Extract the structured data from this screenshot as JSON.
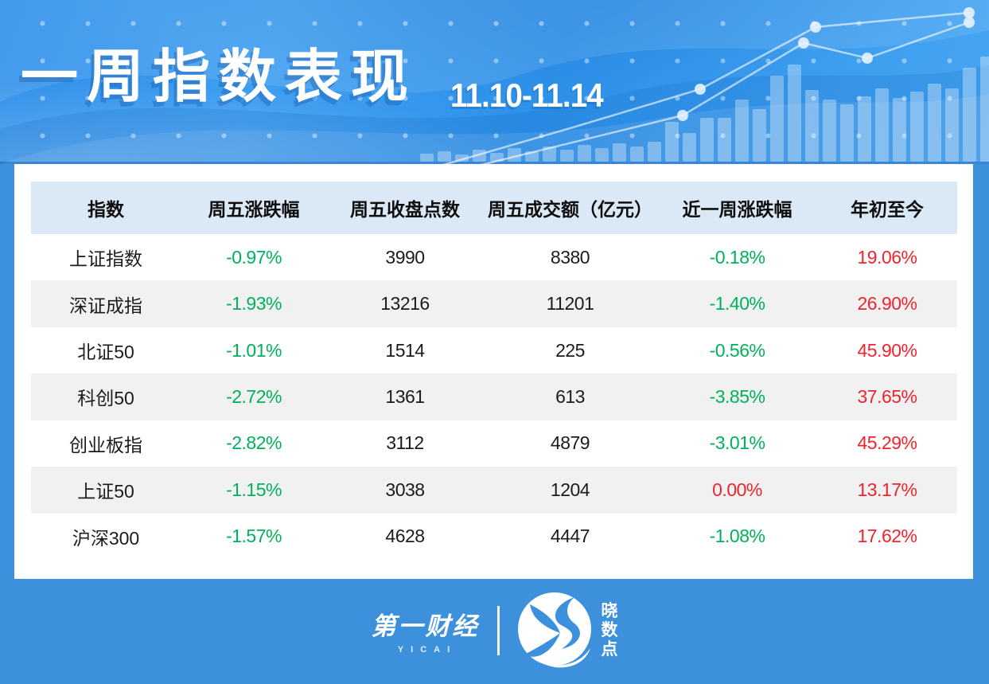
{
  "header": {
    "title": "一周指数表现",
    "date_range": "11.10-11.14",
    "decor_bars": [
      10,
      13,
      9,
      15,
      11,
      17,
      13,
      19,
      15,
      21,
      17,
      23,
      19,
      25,
      50,
      36,
      55,
      55,
      78,
      66,
      108,
      122,
      90,
      78,
      72,
      82,
      92,
      80,
      88,
      98,
      92,
      118,
      132
    ]
  },
  "table": {
    "columns": [
      {
        "label": "指数"
      },
      {
        "label": "周五涨跌幅"
      },
      {
        "label": "周五收盘点数"
      },
      {
        "label": "周五成交额（亿元）"
      },
      {
        "label": "近一周涨跌幅"
      },
      {
        "label": "年初至今"
      }
    ],
    "rows": [
      {
        "name": "上证指数",
        "values": [
          "-0.97%",
          "3990",
          "8380",
          "-0.18%",
          "19.06%"
        ],
        "colors": [
          "down",
          "plain",
          "plain",
          "down",
          "up"
        ]
      },
      {
        "name": "深证成指",
        "values": [
          "-1.93%",
          "13216",
          "11201",
          "-1.40%",
          "26.90%"
        ],
        "colors": [
          "down",
          "plain",
          "plain",
          "down",
          "up"
        ]
      },
      {
        "name": "北证50",
        "values": [
          "-1.01%",
          "1514",
          "225",
          "-0.56%",
          "45.90%"
        ],
        "colors": [
          "down",
          "plain",
          "plain",
          "down",
          "up"
        ]
      },
      {
        "name": "科创50",
        "values": [
          "-2.72%",
          "1361",
          "613",
          "-3.85%",
          "37.65%"
        ],
        "colors": [
          "down",
          "plain",
          "plain",
          "down",
          "up"
        ]
      },
      {
        "name": "创业板指",
        "values": [
          "-2.82%",
          "3112",
          "4879",
          "-3.01%",
          "45.29%"
        ],
        "colors": [
          "down",
          "plain",
          "plain",
          "down",
          "up"
        ]
      },
      {
        "name": "上证50",
        "values": [
          "-1.15%",
          "3038",
          "1204",
          "0.00%",
          "13.17%"
        ],
        "colors": [
          "down",
          "plain",
          "plain",
          "up",
          "up"
        ]
      },
      {
        "name": "沪深300",
        "values": [
          "-1.57%",
          "4628",
          "4447",
          "-1.08%",
          "17.62%"
        ],
        "colors": [
          "down",
          "plain",
          "plain",
          "down",
          "up"
        ]
      }
    ]
  },
  "footer": {
    "brand_cn": "第一财经",
    "brand_en": "YICAI",
    "sub_brand": "晓数点",
    "sub_brand_chars": [
      "晓",
      "数",
      "点"
    ]
  },
  "colors": {
    "up_red": "#f1232e",
    "down_green": "#00b15c",
    "page_blue": "#3c90dc",
    "header_row_blue": "#dbe9f6",
    "stripe_gray": "#f1f1f2"
  },
  "chart_data": {
    "type": "table",
    "title": "一周指数表现",
    "period": "11.10-11.14",
    "columns": [
      "指数",
      "周五涨跌幅",
      "周五收盘点数",
      "周五成交额（亿元）",
      "近一周涨跌幅",
      "年初至今"
    ],
    "rows": [
      [
        "上证指数",
        "-0.97%",
        "3990",
        "8380",
        "-0.18%",
        "19.06%"
      ],
      [
        "深证成指",
        "-1.93%",
        "13216",
        "11201",
        "-1.40%",
        "26.90%"
      ],
      [
        "北证50",
        "-1.01%",
        "1514",
        "225",
        "-0.56%",
        "45.90%"
      ],
      [
        "科创50",
        "-2.72%",
        "1361",
        "613",
        "-3.85%",
        "37.65%"
      ],
      [
        "创业板指",
        "-2.82%",
        "3112",
        "4879",
        "-3.01%",
        "45.29%"
      ],
      [
        "上证50",
        "-1.15%",
        "3038",
        "1204",
        "0.00%",
        "13.17%"
      ],
      [
        "沪深300",
        "-1.57%",
        "4628",
        "4447",
        "-1.08%",
        "17.62%"
      ]
    ],
    "notes": "negative weekly changes shown green, zero/positive and YTD values shown red (CN market convention)"
  }
}
